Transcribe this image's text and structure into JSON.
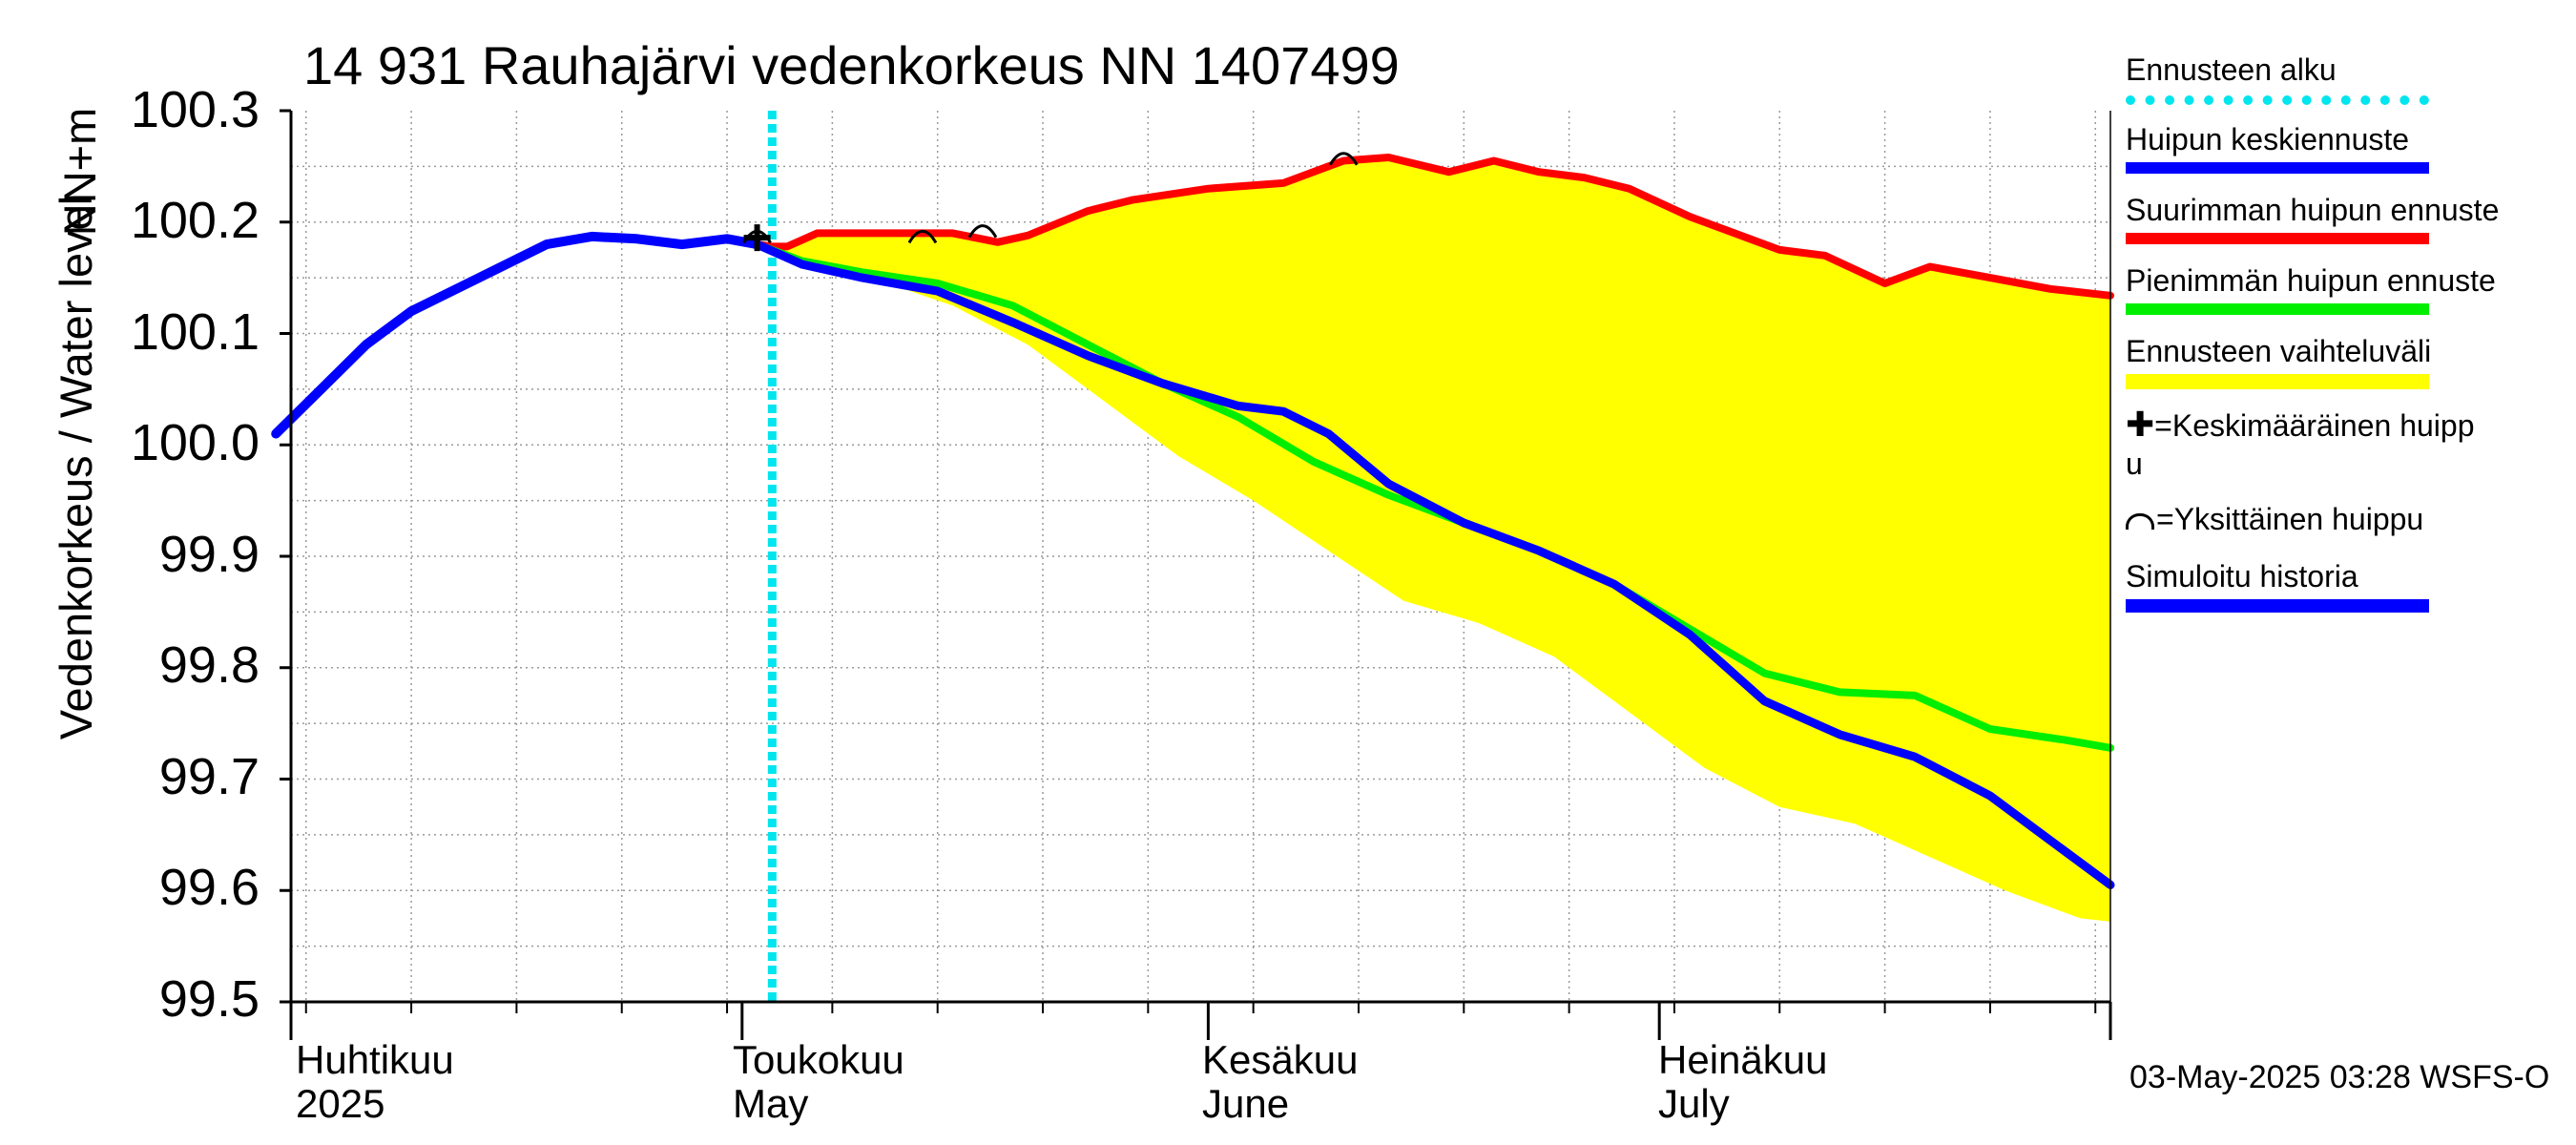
{
  "chart_data": {
    "type": "line",
    "title": "14 931 Rauhajärvi vedenkorkeus NN 1407499",
    "ylabel": "Vedenkorkeus / Water level",
    "yunit": "NN+m",
    "ylim": [
      99.5,
      100.3
    ],
    "yticks": [
      "100.3",
      "100.2",
      "100.1",
      "100.0",
      "99.9",
      "99.8",
      "99.7",
      "99.6",
      "99.5"
    ],
    "xlim": [
      "2025-04-01",
      "2025-07-31"
    ],
    "grid": true,
    "forecast_start": "2025-05-03",
    "months": [
      {
        "label": "Huhtikuu",
        "label2": "2025"
      },
      {
        "label": "Toukokuu",
        "label2": "May"
      },
      {
        "label": "Kesäkuu",
        "label2": "June"
      },
      {
        "label": "Heinäkuu",
        "label2": "July"
      }
    ],
    "series": [
      {
        "name": "Simuloitu historia",
        "color": "#0000ff",
        "x": [
          "2025-03-31",
          "2025-04-03",
          "2025-04-06",
          "2025-04-09",
          "2025-04-12",
          "2025-04-15",
          "2025-04-18",
          "2025-04-21",
          "2025-04-24",
          "2025-04-27",
          "2025-04-30",
          "2025-05-02"
        ],
        "y": [
          100.01,
          100.05,
          100.09,
          100.12,
          100.14,
          100.16,
          100.18,
          100.187,
          100.185,
          100.18,
          100.185,
          100.18
        ]
      },
      {
        "name": "Suurimman huipun ennuste",
        "color": "#ff0000",
        "x": [
          "2025-05-02",
          "2025-05-03",
          "2025-05-04",
          "2025-05-06",
          "2025-05-09",
          "2025-05-15",
          "2025-05-18",
          "2025-05-20",
          "2025-05-24",
          "2025-05-27",
          "2025-06-01",
          "2025-06-06",
          "2025-06-10",
          "2025-06-13",
          "2025-06-17",
          "2025-06-20",
          "2025-06-23",
          "2025-06-26",
          "2025-06-29",
          "2025-07-03",
          "2025-07-06",
          "2025-07-09",
          "2025-07-12",
          "2025-07-16",
          "2025-07-19",
          "2025-07-23",
          "2025-07-27",
          "2025-07-31"
        ],
        "y": [
          100.18,
          100.178,
          100.178,
          100.19,
          100.19,
          100.19,
          100.182,
          100.188,
          100.21,
          100.22,
          100.23,
          100.235,
          100.255,
          100.258,
          100.245,
          100.255,
          100.245,
          100.24,
          100.23,
          100.205,
          100.19,
          100.175,
          100.17,
          100.145,
          100.16,
          100.15,
          100.14,
          100.134
        ]
      },
      {
        "name": "Pienimmän huipun ennuste",
        "color": "#00ee00",
        "x": [
          "2025-05-02",
          "2025-05-05",
          "2025-05-09",
          "2025-05-14",
          "2025-05-19",
          "2025-05-24",
          "2025-05-29",
          "2025-06-03",
          "2025-06-08",
          "2025-06-13",
          "2025-06-18",
          "2025-06-23",
          "2025-06-28",
          "2025-07-03",
          "2025-07-08",
          "2025-07-13",
          "2025-07-18",
          "2025-07-23",
          "2025-07-28",
          "2025-07-31"
        ],
        "y": [
          100.18,
          100.165,
          100.155,
          100.145,
          100.125,
          100.09,
          100.055,
          100.025,
          99.985,
          99.955,
          99.93,
          99.905,
          99.875,
          99.835,
          99.795,
          99.778,
          99.775,
          99.745,
          99.735,
          99.728
        ]
      },
      {
        "name": "Huipun keskiennuste",
        "color": "#0000ff",
        "x": [
          "2025-05-02",
          "2025-05-05",
          "2025-05-09",
          "2025-05-14",
          "2025-05-19",
          "2025-05-24",
          "2025-05-29",
          "2025-06-03",
          "2025-06-06",
          "2025-06-09",
          "2025-06-13",
          "2025-06-18",
          "2025-06-23",
          "2025-06-28",
          "2025-07-03",
          "2025-07-08",
          "2025-07-13",
          "2025-07-18",
          "2025-07-23",
          "2025-07-28",
          "2025-07-31"
        ],
        "y": [
          100.18,
          100.162,
          100.15,
          100.138,
          100.11,
          100.08,
          100.055,
          100.035,
          100.03,
          100.01,
          99.965,
          99.93,
          99.905,
          99.875,
          99.83,
          99.77,
          99.74,
          99.72,
          99.685,
          99.635,
          99.605
        ]
      },
      {
        "name": "Ennusteen vaihteluväli",
        "color": "#ffff00",
        "x": [
          "2025-05-02",
          "2025-05-06",
          "2025-05-10",
          "2025-05-15",
          "2025-05-20",
          "2025-05-25",
          "2025-05-30",
          "2025-06-04",
          "2025-06-09",
          "2025-06-14",
          "2025-06-19",
          "2025-06-24",
          "2025-06-29",
          "2025-07-04",
          "2025-07-09",
          "2025-07-14",
          "2025-07-19",
          "2025-07-24",
          "2025-07-29",
          "2025-07-31"
        ],
        "y": [
          100.18,
          100.16,
          100.148,
          100.125,
          100.09,
          100.04,
          99.99,
          99.95,
          99.905,
          99.86,
          99.84,
          99.81,
          99.76,
          99.71,
          99.675,
          99.66,
          99.63,
          99.6,
          99.575,
          99.572
        ]
      }
    ],
    "annotations": [
      {
        "kind": "Keskimääräinen huippu",
        "x": "2025-05-02",
        "y": 100.186
      },
      {
        "kind": "Yksittäinen huippu",
        "x": "2025-05-02",
        "y": 100.19
      },
      {
        "kind": "Yksittäinen huippu",
        "x": "2025-05-13",
        "y": 100.19
      },
      {
        "kind": "Yksittäinen huippu",
        "x": "2025-05-17",
        "y": 100.195
      },
      {
        "kind": "Yksittäinen huippu",
        "x": "2025-06-10",
        "y": 100.26
      }
    ]
  },
  "legend": {
    "items": [
      {
        "label": "Ennusteen alku",
        "color": "#00e5ee",
        "style": "dotted"
      },
      {
        "label": "Huipun keskiennuste",
        "color": "#0000ff",
        "style": "solid"
      },
      {
        "label": "Suurimman huipun ennuste",
        "color": "#ff0000",
        "style": "solid"
      },
      {
        "label": "Pienimmän huipun ennuste",
        "color": "#00ee00",
        "style": "solid"
      },
      {
        "label": "Ennusteen vaihteluväli",
        "color": "#ffff00",
        "style": "solid"
      }
    ],
    "mean_peak": "=Keskimääräinen huipp",
    "mean_peak_wrap": "u",
    "single_peak": "=Yksittäinen huippu",
    "history": "Simuloitu historia",
    "history_color": "#0000ff"
  },
  "footer": "03-May-2025 03:28 WSFS-O"
}
